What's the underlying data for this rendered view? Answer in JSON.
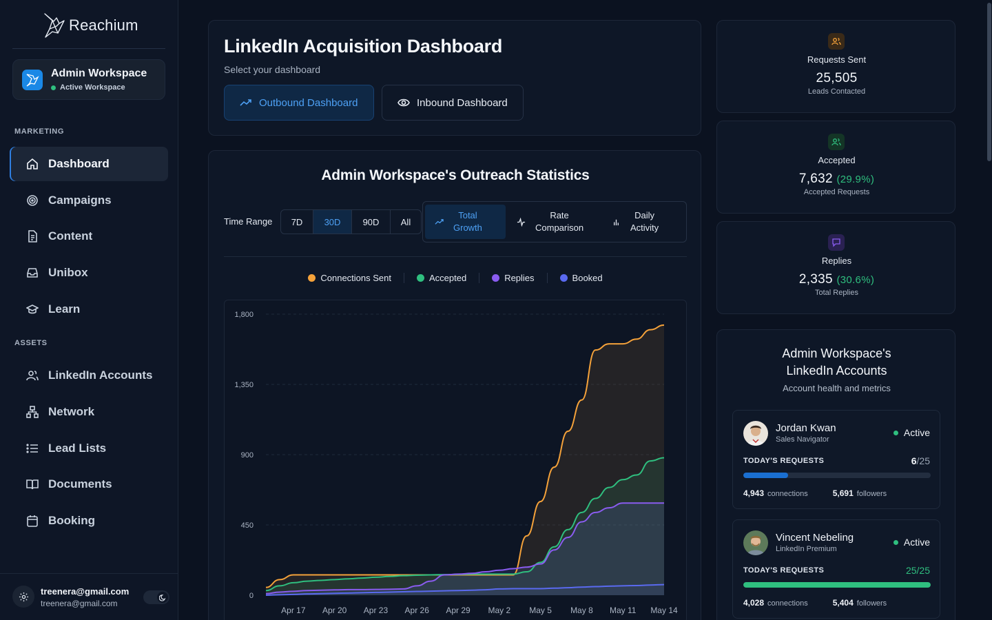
{
  "brand": {
    "name": "Reachium"
  },
  "workspace": {
    "name": "Admin Workspace",
    "status": "Active Workspace"
  },
  "sidebar": {
    "sections": [
      {
        "label": "MARKETING"
      },
      {
        "label": "ASSETS"
      }
    ],
    "items": [
      {
        "label": "Dashboard",
        "icon": "home-icon",
        "active": true
      },
      {
        "label": "Campaigns",
        "icon": "target-icon"
      },
      {
        "label": "Content",
        "icon": "document-icon"
      },
      {
        "label": "Unibox",
        "icon": "inbox-icon"
      },
      {
        "label": "Learn",
        "icon": "graduation-cap-icon"
      },
      {
        "label": "LinkedIn Accounts",
        "icon": "users-icon"
      },
      {
        "label": "Network",
        "icon": "network-icon"
      },
      {
        "label": "Lead Lists",
        "icon": "list-icon"
      },
      {
        "label": "Documents",
        "icon": "book-icon"
      },
      {
        "label": "Booking",
        "icon": "calendar-icon"
      }
    ]
  },
  "user": {
    "email_primary": "treenera@gmail.com",
    "email_secondary": "treenera@gmail.com",
    "theme": "dark"
  },
  "header": {
    "title": "LinkedIn Acquisition Dashboard",
    "subtitle": "Select your dashboard",
    "outbound_label": "Outbound Dashboard",
    "inbound_label": "Inbound Dashboard"
  },
  "stats_panel": {
    "title": "Admin Workspace's Outreach Statistics",
    "range_label": "Time Range",
    "ranges": [
      "7D",
      "30D",
      "90D",
      "All"
    ],
    "selected_range": "30D",
    "views": [
      {
        "line1": "Total",
        "line2": "Growth",
        "active": true
      },
      {
        "line1": "Rate",
        "line2": "Comparison"
      },
      {
        "line1": "Daily",
        "line2": "Activity"
      }
    ]
  },
  "colors": {
    "connections": "#f5a23a",
    "accepted": "#2fbf7f",
    "replies": "#8a5cf0",
    "booked": "#5a6af0",
    "accent": "#4ea1f5"
  },
  "chart_data": {
    "type": "area",
    "ylim": [
      0,
      1800
    ],
    "yticks": [
      "1,800",
      "1,350",
      "900",
      "450",
      "0"
    ],
    "xticks": [
      "Apr 17",
      "Apr 20",
      "Apr 23",
      "Apr 26",
      "Apr 29",
      "May 2",
      "May 5",
      "May 8",
      "May 11",
      "May 14"
    ],
    "x": [
      "Apr 15",
      "Apr 16",
      "Apr 17",
      "Apr 18",
      "Apr 19",
      "Apr 20",
      "Apr 21",
      "Apr 22",
      "Apr 23",
      "Apr 24",
      "Apr 25",
      "Apr 26",
      "Apr 27",
      "Apr 28",
      "Apr 29",
      "Apr 30",
      "May 1",
      "May 2",
      "May 3",
      "May 4",
      "May 5",
      "May 6",
      "May 7",
      "May 8",
      "May 9",
      "May 10",
      "May 11",
      "May 12",
      "May 13",
      "May 14"
    ],
    "series": [
      {
        "name": "Connections Sent",
        "values": [
          50,
          100,
          130,
          130,
          130,
          130,
          130,
          130,
          130,
          130,
          130,
          130,
          130,
          130,
          130,
          130,
          130,
          130,
          130,
          380,
          600,
          820,
          1050,
          1250,
          1570,
          1610,
          1610,
          1640,
          1700,
          1730
        ]
      },
      {
        "name": "Accepted",
        "values": [
          30,
          60,
          80,
          90,
          95,
          100,
          105,
          110,
          115,
          120,
          125,
          128,
          130,
          132,
          133,
          135,
          135,
          135,
          135,
          150,
          210,
          310,
          420,
          530,
          620,
          690,
          740,
          770,
          860,
          880
        ]
      },
      {
        "name": "Replies",
        "values": [
          10,
          20,
          25,
          30,
          32,
          34,
          36,
          36,
          37,
          38,
          40,
          60,
          90,
          130,
          135,
          140,
          150,
          160,
          170,
          180,
          200,
          290,
          370,
          470,
          530,
          560,
          590,
          590,
          590,
          590
        ]
      },
      {
        "name": "Booked",
        "values": [
          0,
          3,
          5,
          8,
          10,
          12,
          14,
          16,
          18,
          20,
          22,
          24,
          26,
          28,
          30,
          32,
          35,
          40,
          42,
          42,
          42,
          45,
          48,
          52,
          55,
          58,
          60,
          62,
          65,
          68
        ]
      }
    ]
  },
  "stat_cards": [
    {
      "label": "Requests Sent",
      "value": "25,505",
      "pct": "",
      "sub": "Leads Contacted",
      "icon": "users-icon",
      "color": "#f5a23a"
    },
    {
      "label": "Accepted",
      "value": "7,632",
      "pct": "(29.9%)",
      "sub": "Accepted Requests",
      "icon": "user-check-icon",
      "color": "#2fbf7f"
    },
    {
      "label": "Replies",
      "value": "2,335",
      "pct": "(30.6%)",
      "sub": "Total Replies",
      "icon": "message-icon",
      "color": "#8a5cf0"
    }
  ],
  "accounts": {
    "title": "Admin Workspace's LinkedIn Accounts",
    "subtitle": "Account health and metrics",
    "req_label": "TODAY'S REQUESTS",
    "list": [
      {
        "name": "Jordan Kwan",
        "type": "Sales Navigator",
        "status": "Active",
        "used": "6",
        "limit": "25",
        "progress": 0.24,
        "bar_color": "#1a6fd1",
        "connections": "4,943",
        "connections_label": "connections",
        "followers": "5,691",
        "followers_label": "followers"
      },
      {
        "name": "Vincent Nebeling",
        "type": "LinkedIn Premium",
        "status": "Active",
        "used": "25",
        "limit": "25",
        "progress": 1.0,
        "bar_color": "#2fbf7f",
        "connections": "4,028",
        "connections_label": "connections",
        "followers": "5,404",
        "followers_label": "followers"
      }
    ]
  }
}
